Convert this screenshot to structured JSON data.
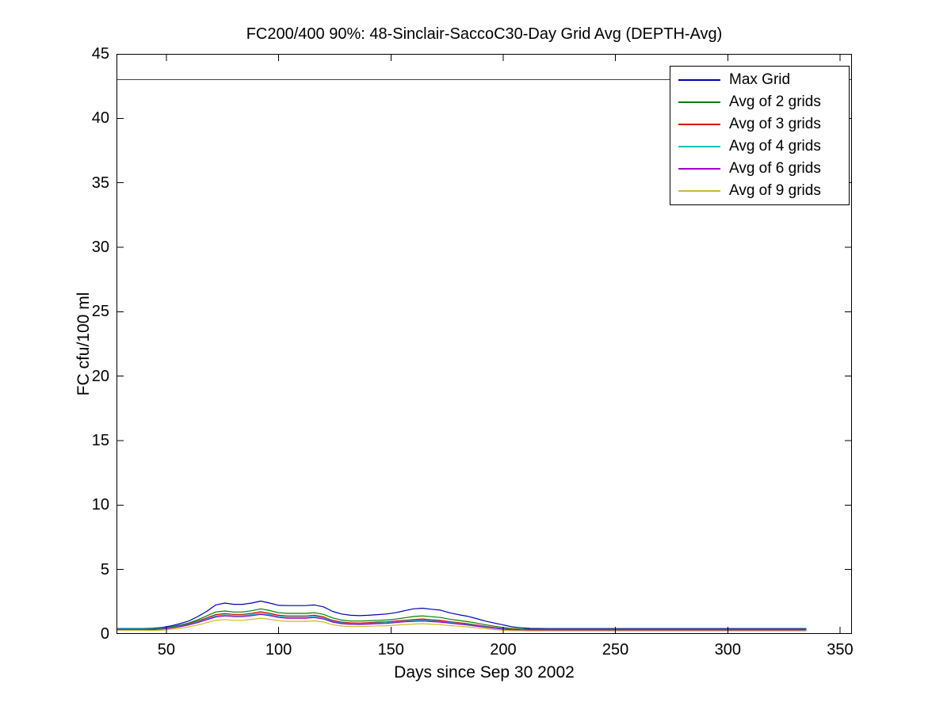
{
  "chart_data": {
    "type": "line",
    "title": "FC200/400 90%: 48-Sinclair-SaccoC30-Day Grid Avg (DEPTH-Avg)",
    "xlabel": "Days since Sep 30 2002",
    "ylabel": "FC cfu/100 ml",
    "xlim": [
      27.8,
      355.3
    ],
    "ylim": [
      0,
      45
    ],
    "xticks": [
      50,
      100,
      150,
      200,
      250,
      300,
      350
    ],
    "yticks": [
      0,
      5,
      10,
      15,
      20,
      25,
      30,
      35,
      40,
      45
    ],
    "grid": false,
    "threshold_line_y": 43,
    "threshold_color": "#404040",
    "axis_color": "#000000",
    "legend_position": "upper-right",
    "x": [
      28,
      32,
      36,
      40,
      44,
      48,
      52,
      56,
      60,
      64,
      68,
      72,
      76,
      80,
      84,
      88,
      92,
      96,
      100,
      104,
      108,
      112,
      116,
      120,
      124,
      128,
      132,
      136,
      140,
      144,
      148,
      152,
      156,
      160,
      164,
      168,
      172,
      176,
      180,
      184,
      188,
      192,
      196,
      200,
      204,
      208,
      212,
      220,
      240,
      260,
      280,
      300,
      320,
      335
    ],
    "series": [
      {
        "name": "Max Grid",
        "color": "#0000B0",
        "values": [
          0.42,
          0.42,
          0.42,
          0.42,
          0.44,
          0.5,
          0.62,
          0.8,
          1.0,
          1.35,
          1.75,
          2.25,
          2.4,
          2.3,
          2.3,
          2.4,
          2.55,
          2.4,
          2.22,
          2.2,
          2.2,
          2.2,
          2.25,
          2.1,
          1.75,
          1.55,
          1.45,
          1.42,
          1.45,
          1.5,
          1.55,
          1.65,
          1.8,
          1.95,
          2.0,
          1.92,
          1.85,
          1.65,
          1.5,
          1.38,
          1.2,
          1.0,
          0.85,
          0.7,
          0.55,
          0.48,
          0.43,
          0.42,
          0.42,
          0.42,
          0.42,
          0.42,
          0.42,
          0.42
        ]
      },
      {
        "name": "Avg of 2 grids",
        "color": "#007F00",
        "values": [
          0.38,
          0.38,
          0.38,
          0.38,
          0.4,
          0.46,
          0.55,
          0.68,
          0.85,
          1.1,
          1.4,
          1.7,
          1.78,
          1.7,
          1.7,
          1.8,
          1.95,
          1.82,
          1.65,
          1.6,
          1.6,
          1.6,
          1.65,
          1.52,
          1.25,
          1.08,
          1.0,
          1.0,
          1.02,
          1.06,
          1.08,
          1.15,
          1.25,
          1.35,
          1.4,
          1.34,
          1.28,
          1.15,
          1.05,
          0.96,
          0.85,
          0.72,
          0.6,
          0.5,
          0.42,
          0.38,
          0.36,
          0.35,
          0.35,
          0.35,
          0.35,
          0.35,
          0.35,
          0.35
        ]
      },
      {
        "name": "Avg of 3 grids",
        "color": "#D90000",
        "values": [
          0.3,
          0.3,
          0.3,
          0.3,
          0.33,
          0.4,
          0.5,
          0.62,
          0.78,
          1.0,
          1.25,
          1.5,
          1.58,
          1.52,
          1.52,
          1.6,
          1.72,
          1.6,
          1.45,
          1.4,
          1.4,
          1.4,
          1.45,
          1.32,
          1.05,
          0.92,
          0.86,
          0.85,
          0.88,
          0.92,
          0.94,
          1.0,
          1.06,
          1.12,
          1.16,
          1.1,
          1.05,
          0.95,
          0.88,
          0.8,
          0.7,
          0.6,
          0.5,
          0.42,
          0.36,
          0.31,
          0.29,
          0.28,
          0.28,
          0.28,
          0.28,
          0.28,
          0.28,
          0.28
        ]
      },
      {
        "name": "Avg of 4 grids",
        "color": "#00BFBF",
        "values": [
          0.36,
          0.36,
          0.36,
          0.36,
          0.37,
          0.42,
          0.5,
          0.6,
          0.74,
          0.94,
          1.18,
          1.4,
          1.48,
          1.42,
          1.42,
          1.5,
          1.6,
          1.5,
          1.36,
          1.3,
          1.3,
          1.3,
          1.35,
          1.24,
          0.98,
          0.86,
          0.8,
          0.8,
          0.82,
          0.86,
          0.88,
          0.94,
          1.0,
          1.05,
          1.08,
          1.03,
          0.98,
          0.9,
          0.82,
          0.75,
          0.66,
          0.56,
          0.47,
          0.4,
          0.34,
          0.31,
          0.3,
          0.3,
          0.3,
          0.3,
          0.3,
          0.3,
          0.3,
          0.3
        ]
      },
      {
        "name": "Avg of 6 grids",
        "color": "#9900CC",
        "values": [
          0.33,
          0.33,
          0.33,
          0.33,
          0.34,
          0.38,
          0.46,
          0.56,
          0.7,
          0.88,
          1.1,
          1.32,
          1.4,
          1.34,
          1.34,
          1.42,
          1.52,
          1.42,
          1.28,
          1.22,
          1.22,
          1.22,
          1.27,
          1.16,
          0.92,
          0.8,
          0.75,
          0.74,
          0.77,
          0.8,
          0.82,
          0.88,
          0.94,
          0.98,
          1.01,
          0.96,
          0.92,
          0.84,
          0.77,
          0.7,
          0.61,
          0.52,
          0.44,
          0.37,
          0.32,
          0.3,
          0.29,
          0.29,
          0.29,
          0.29,
          0.29,
          0.29,
          0.29,
          0.29
        ]
      },
      {
        "name": "Avg of 9 grids",
        "color": "#CCBB22",
        "values": [
          0.28,
          0.28,
          0.28,
          0.28,
          0.27,
          0.3,
          0.36,
          0.44,
          0.55,
          0.7,
          0.88,
          1.05,
          1.12,
          1.06,
          1.06,
          1.14,
          1.22,
          1.14,
          1.02,
          0.98,
          0.98,
          0.98,
          1.02,
          0.92,
          0.72,
          0.62,
          0.58,
          0.57,
          0.6,
          0.63,
          0.64,
          0.68,
          0.73,
          0.77,
          0.8,
          0.76,
          0.72,
          0.66,
          0.6,
          0.55,
          0.48,
          0.41,
          0.34,
          0.29,
          0.26,
          0.25,
          0.24,
          0.24,
          0.24,
          0.24,
          0.24,
          0.24,
          0.24,
          0.24
        ]
      }
    ]
  }
}
